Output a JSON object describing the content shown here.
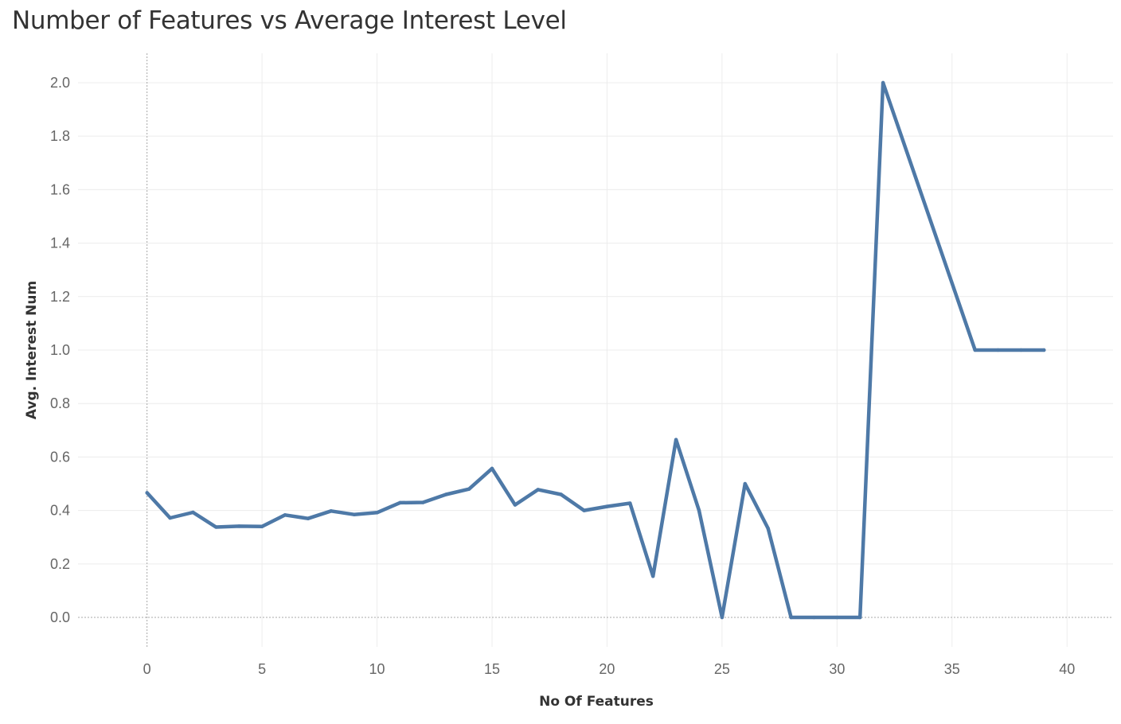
{
  "chart_data": {
    "type": "line",
    "title": "Number of Features vs Average Interest Level",
    "xlabel": "No Of Features",
    "ylabel": "Avg. Interest Num",
    "xlim": [
      -3,
      42
    ],
    "ylim": [
      -0.11,
      2.11
    ],
    "xticks": [
      0,
      5,
      10,
      15,
      20,
      25,
      30,
      35,
      40
    ],
    "yticks": [
      "0.0",
      "0.2",
      "0.4",
      "0.6",
      "0.8",
      "1.0",
      "1.2",
      "1.4",
      "1.6",
      "1.8",
      "2.0"
    ],
    "grid": true,
    "zero_lines": "dashed",
    "series": [
      {
        "color": "#4e79a7",
        "x": [
          0,
          1,
          2,
          3,
          4,
          5,
          6,
          7,
          8,
          9,
          10,
          11,
          12,
          13,
          14,
          15,
          16,
          17,
          18,
          19,
          20,
          21,
          22,
          23,
          24,
          25,
          26,
          27,
          28,
          29,
          30,
          31,
          32,
          36,
          37,
          38,
          39
        ],
        "y": [
          0.466,
          0.372,
          0.393,
          0.338,
          0.341,
          0.34,
          0.383,
          0.37,
          0.398,
          0.385,
          0.392,
          0.429,
          0.43,
          0.46,
          0.48,
          0.557,
          0.421,
          0.478,
          0.46,
          0.4,
          0.415,
          0.427,
          0.154,
          0.665,
          0.4,
          0.0,
          0.5,
          0.333,
          0.0,
          0.0,
          0.0,
          0.0,
          2.0,
          1.0,
          1.0,
          1.0,
          1.0
        ]
      }
    ]
  }
}
